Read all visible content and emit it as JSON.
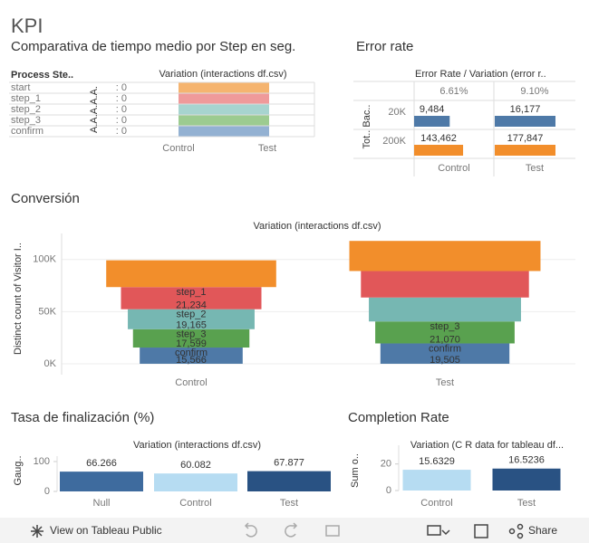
{
  "title": "KPI",
  "chart_data": [
    {
      "type": "table",
      "title": "Comparativa de tiempo medio por Step en seg.",
      "row_header": "Process Ste..",
      "column_header": "Variation (interactions df.csv)",
      "measure_header": "A.A.A.A.A.",
      "categories": [
        "start",
        "step_1",
        "step_2",
        "step_3",
        "confirm"
      ],
      "cells": [
        ": 0",
        ": 0",
        ": 0",
        ": 0",
        ": 0"
      ],
      "colors": [
        "#f5b46f",
        "#ef9a9a",
        "#a7d4cf",
        "#9ccb90",
        "#93b1d2"
      ],
      "columns": [
        "Control",
        "Test"
      ]
    },
    {
      "type": "crosstab",
      "title": "Error rate",
      "column_header": "Error Rate  /  Variation (error r..",
      "row_title": "Tot.. Bac..",
      "categories": [
        "Control",
        "Test"
      ],
      "values": [
        6.61,
        9.1
      ],
      "value_labels": [
        "6.61%",
        "9.10%"
      ],
      "series": [
        {
          "name": "20K",
          "color": "#4e79a7",
          "values": [
            9484,
            16177
          ],
          "value_labels": [
            "9,484",
            "16,177"
          ]
        },
        {
          "name": "200K",
          "color": "#f28e2b",
          "values": [
            143462,
            177847
          ],
          "value_labels": [
            "143,462",
            "177,847"
          ]
        }
      ]
    },
    {
      "type": "funnel",
      "title": "Conversión",
      "subtitle": "Variation (interactions df.csv)",
      "y_label": "Distinct count of Visitor I..",
      "categories": [
        "Control",
        "Test"
      ],
      "ylim": [
        -7000,
        125000
      ],
      "yticks": [
        {
          "value": 0,
          "label": "0K"
        },
        {
          "value": 50000,
          "label": "50K"
        },
        {
          "value": 100000,
          "label": "100K"
        }
      ],
      "grid": true,
      "series": [
        {
          "name": "start",
          "color": "#f28e2b",
          "values": [
            25700,
            28900
          ],
          "value_labels": [
            null,
            null
          ]
        },
        {
          "name": "step_1",
          "color": "#e15759",
          "values": [
            21234,
            25400
          ],
          "value_labels": [
            "21,234",
            null
          ]
        },
        {
          "name": "step_2",
          "color": "#76b7b2",
          "values": [
            19165,
            23000
          ],
          "value_labels": [
            "19,165",
            null
          ]
        },
        {
          "name": "step_3",
          "color": "#59a14f",
          "values": [
            17599,
            21070
          ],
          "value_labels": [
            "17,599",
            "21,070"
          ]
        },
        {
          "name": "confirm",
          "color": "#4e79a7",
          "values": [
            15566,
            19505
          ],
          "value_labels": [
            "15,566",
            "19,505"
          ]
        }
      ]
    },
    {
      "type": "bar",
      "title": "Tasa de finalización (%)",
      "subtitle": "Variation (interactions df.csv)",
      "y_label": "Gaug..",
      "categories": [
        "Null",
        "Control",
        "Test"
      ],
      "values": [
        66.266,
        60.082,
        67.877
      ],
      "colors": [
        "#3e6b9e",
        "#b6dcf2",
        "#295283"
      ],
      "ylim": [
        0,
        100
      ],
      "yticks": [
        0,
        100
      ]
    },
    {
      "type": "bar",
      "title": "Completion Rate",
      "subtitle": "Variation (C R data for tableau df...",
      "y_label": "Sum o..",
      "categories": [
        "Control",
        "Test"
      ],
      "values": [
        15.6329,
        16.5236
      ],
      "colors": [
        "#b6dcf2",
        "#295283"
      ],
      "ylim": [
        0,
        30
      ],
      "yticks": [
        0,
        20
      ]
    }
  ],
  "toolbar": {
    "view": "View on Tableau Public",
    "share": "Share"
  }
}
